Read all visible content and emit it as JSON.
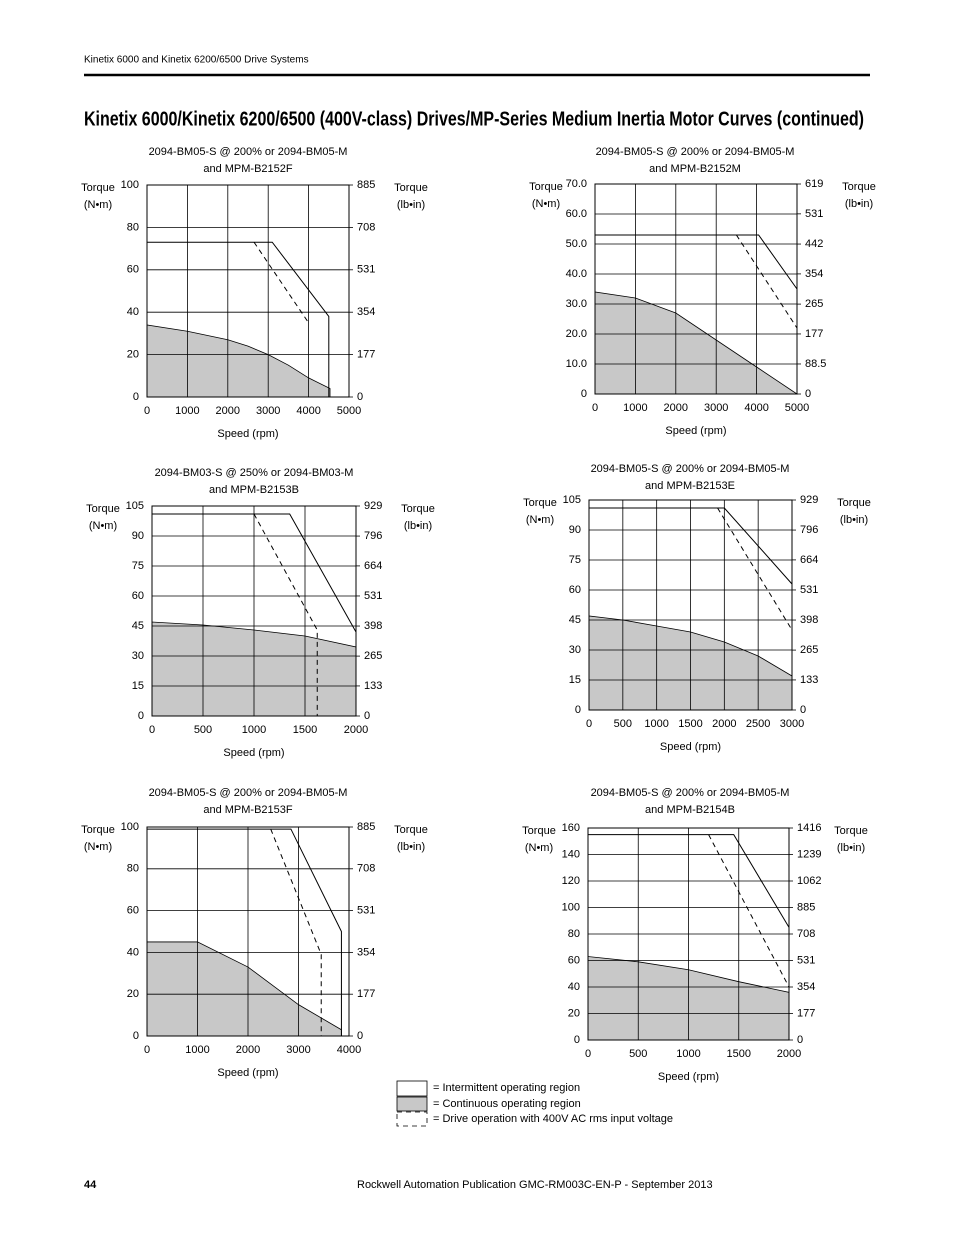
{
  "header": "Kinetix 6000 and Kinetix 6200/6500 Drive Systems",
  "title": "Kinetix 6000/Kinetix 6200/6500 (400V-class) Drives/MP-Series Medium Inertia Motor Curves (continued)",
  "legend": [
    "= Intermittent operating region",
    "= Continuous operating region",
    "= Drive operation with 400V AC rms input voltage"
  ],
  "footer": {
    "page": "44",
    "publication": "Rockwell Automation Publication GMC-RM003C-EN-P - September 2013"
  },
  "chart_data": [
    {
      "type": "line",
      "title": "2094-BM05-S @ 200% or 2094-BM05-M",
      "subtitle": "and MPM-B2152F",
      "ylabel": [
        "Torque",
        "(N•m)"
      ],
      "y2label": [
        "Torque",
        "(lb•in)"
      ],
      "xlabel": "Speed (rpm)",
      "xlim": [
        0,
        5000
      ],
      "xticks": [
        0,
        1000,
        2000,
        3000,
        4000,
        5000
      ],
      "ylim": [
        0,
        100
      ],
      "yticks": [
        0,
        20,
        40,
        60,
        80,
        100
      ],
      "y2lim": [
        0,
        885
      ],
      "y2ticks": [
        0,
        177,
        354,
        531,
        708,
        885
      ],
      "grid": true,
      "series": [
        {
          "style": "area",
          "color": "#c8c8c8",
          "x": [
            0,
            1000,
            2000,
            2500,
            3000,
            3500,
            4000,
            4530
          ],
          "values": [
            34,
            31,
            27,
            24,
            20,
            15,
            9,
            4
          ]
        },
        {
          "style": "solid",
          "color": "#000000",
          "x": [
            0,
            3100,
            4500,
            4500
          ],
          "values": [
            73,
            73,
            38,
            0
          ]
        },
        {
          "style": "dashed",
          "color": "#000000",
          "x": [
            2650,
            4000
          ],
          "values": [
            73,
            35
          ]
        }
      ]
    },
    {
      "type": "line",
      "title": "2094-BM05-S @ 200% or 2094-BM05-M",
      "subtitle": "and MPM-B2152M",
      "ylabel": [
        "Torque",
        "(N•m)"
      ],
      "y2label": [
        "Torque",
        "(lb•in)"
      ],
      "xlabel": "Speed (rpm)",
      "xlim": [
        0,
        5000
      ],
      "xticks": [
        0,
        1000,
        2000,
        3000,
        4000,
        5000
      ],
      "ylim": [
        0,
        70
      ],
      "yticks": [
        0,
        {
          "value": 10,
          "label": "10.0"
        },
        {
          "value": 20,
          "label": "20.0"
        },
        {
          "value": 30,
          "label": "30.0"
        },
        {
          "value": 40,
          "label": "40.0"
        },
        {
          "value": 50,
          "label": "50.0"
        },
        {
          "value": 60,
          "label": "60.0"
        },
        {
          "value": 70,
          "label": "70.0"
        }
      ],
      "y2lim": [
        0,
        619
      ],
      "y2ticks": [
        0,
        88.5,
        177,
        265,
        354,
        442,
        531,
        619
      ],
      "grid": true,
      "series": [
        {
          "style": "area",
          "color": "#c8c8c8",
          "x": [
            0,
            1000,
            2000,
            3000,
            4000,
            5000
          ],
          "values": [
            34,
            32,
            27,
            18,
            9,
            0
          ]
        },
        {
          "style": "solid",
          "color": "#000000",
          "x": [
            0,
            4050,
            5000
          ],
          "values": [
            53,
            53,
            35
          ]
        },
        {
          "style": "dashed",
          "color": "#000000",
          "x": [
            3500,
            5000
          ],
          "values": [
            53,
            22
          ]
        }
      ]
    },
    {
      "type": "line",
      "title": "2094-BM03-S @ 250% or 2094-BM03-M",
      "subtitle": "and MPM-B2153B",
      "ylabel": [
        "Torque",
        "(N•m)"
      ],
      "y2label": [
        "Torque",
        "(lb•in)"
      ],
      "xlabel": "Speed (rpm)",
      "xlim": [
        0,
        2000
      ],
      "xticks": [
        0,
        500,
        1000,
        1500,
        2000
      ],
      "ylim": [
        0,
        105
      ],
      "yticks": [
        0,
        15,
        30,
        45,
        60,
        75,
        90,
        105
      ],
      "y2lim": [
        0,
        929
      ],
      "y2ticks": [
        0,
        133,
        265,
        398,
        531,
        664,
        796,
        929
      ],
      "grid": true,
      "series": [
        {
          "style": "area",
          "color": "#c8c8c8",
          "x": [
            0,
            500,
            1000,
            1500,
            2000
          ],
          "values": [
            47,
            45.5,
            43,
            40,
            34.5
          ]
        },
        {
          "style": "solid",
          "color": "#000000",
          "x": [
            0,
            1350,
            2000
          ],
          "values": [
            101,
            101,
            42
          ]
        },
        {
          "style": "dashed",
          "color": "#000000",
          "x": [
            1000,
            1620,
            1620
          ],
          "values": [
            101,
            43,
            0
          ]
        }
      ]
    },
    {
      "type": "line",
      "title": "2094-BM05-S @ 200% or 2094-BM05-M",
      "subtitle": "and MPM-B2153E",
      "ylabel": [
        "Torque",
        "(N•m)"
      ],
      "y2label": [
        "Torque",
        "(lb•in)"
      ],
      "xlabel": "Speed (rpm)",
      "xlim": [
        0,
        3000
      ],
      "xticks": [
        0,
        500,
        1000,
        1500,
        2000,
        2500,
        3000
      ],
      "ylim": [
        0,
        105
      ],
      "yticks": [
        0,
        15,
        30,
        45,
        60,
        75,
        90,
        105
      ],
      "y2lim": [
        0,
        929
      ],
      "y2ticks": [
        0,
        133,
        265,
        398,
        531,
        664,
        796,
        929
      ],
      "grid": true,
      "series": [
        {
          "style": "area",
          "color": "#c8c8c8",
          "x": [
            0,
            500,
            1000,
            1500,
            2000,
            2500,
            3000
          ],
          "values": [
            47,
            45,
            42,
            39,
            34,
            27,
            17
          ]
        },
        {
          "style": "solid",
          "color": "#000000",
          "x": [
            0,
            2000,
            3000
          ],
          "values": [
            101,
            101,
            63
          ]
        },
        {
          "style": "dashed",
          "color": "#000000",
          "x": [
            1900,
            3000
          ],
          "values": [
            101,
            40
          ]
        }
      ]
    },
    {
      "type": "line",
      "title": "2094-BM05-S @ 200% or 2094-BM05-M",
      "subtitle": "and MPM-B2153F",
      "ylabel": [
        "Torque",
        "(N•m)"
      ],
      "y2label": [
        "Torque",
        "(lb•in)"
      ],
      "xlabel": "Speed (rpm)",
      "xlim": [
        0,
        4000
      ],
      "xticks": [
        0,
        1000,
        2000,
        3000,
        4000
      ],
      "ylim": [
        0,
        100
      ],
      "yticks": [
        0,
        20,
        40,
        60,
        80,
        100
      ],
      "y2lim": [
        0,
        885
      ],
      "y2ticks": [
        0,
        177,
        354,
        531,
        708,
        885
      ],
      "grid": true,
      "series": [
        {
          "style": "area",
          "color": "#c8c8c8",
          "x": [
            0,
            1000,
            2000,
            3000,
            3850
          ],
          "values": [
            45,
            45,
            33,
            15,
            3
          ]
        },
        {
          "style": "solid",
          "color": "#000000",
          "x": [
            0,
            2850,
            3850,
            3850
          ],
          "values": [
            99,
            99,
            50,
            0
          ]
        },
        {
          "style": "dashed",
          "color": "#000000",
          "x": [
            2450,
            3450,
            3450
          ],
          "values": [
            99,
            39,
            0
          ]
        }
      ]
    },
    {
      "type": "line",
      "title": "2094-BM05-S @ 200% or 2094-BM05-M",
      "subtitle": "and MPM-B2154B",
      "ylabel": [
        "Torque",
        "(N•m)"
      ],
      "y2label": [
        "Torque",
        "(lb•in)"
      ],
      "xlabel": "Speed (rpm)",
      "xlim": [
        0,
        2000
      ],
      "xticks": [
        0,
        500,
        1000,
        1500,
        2000
      ],
      "ylim": [
        0,
        160
      ],
      "yticks": [
        0,
        20,
        40,
        60,
        80,
        100,
        120,
        140,
        160
      ],
      "y2lim": [
        0,
        1416
      ],
      "y2ticks": [
        0,
        177,
        354,
        531,
        708,
        885,
        1062,
        1239,
        1416
      ],
      "grid": true,
      "series": [
        {
          "style": "area",
          "color": "#c8c8c8",
          "x": [
            0,
            500,
            1000,
            1500,
            2000
          ],
          "values": [
            63,
            59,
            53,
            44,
            36
          ]
        },
        {
          "style": "solid",
          "color": "#000000",
          "x": [
            0,
            1450,
            2000
          ],
          "values": [
            155,
            155,
            85
          ]
        },
        {
          "style": "dashed",
          "color": "#000000",
          "x": [
            1200,
            2000
          ],
          "values": [
            155,
            40
          ]
        }
      ]
    }
  ]
}
